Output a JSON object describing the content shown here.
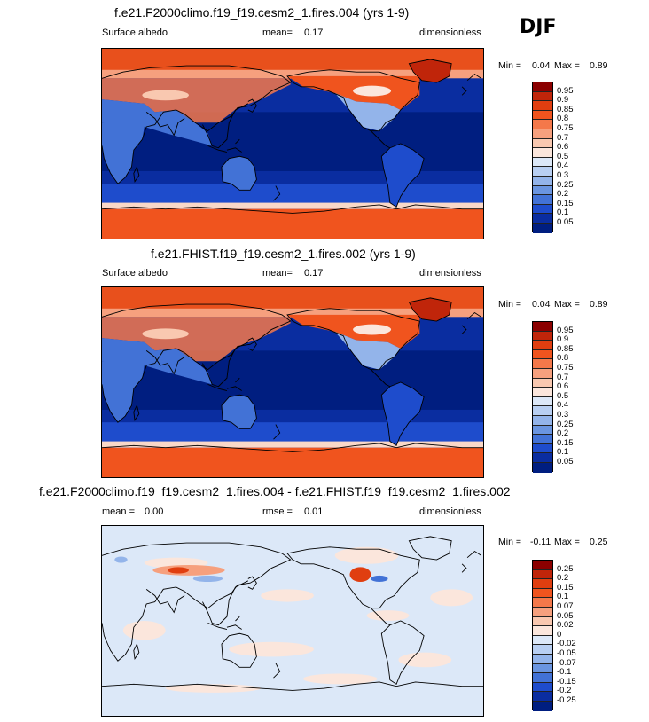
{
  "season": "DJF",
  "panels": [
    {
      "title": "f.e21.F2000climo.f19_f19.cesm2_1.fires.004 (yrs 1-9)",
      "left_label": "Surface albedo",
      "mid_label": "mean=",
      "mid_value": "0.17",
      "right_label": "dimensionless",
      "min_label": "Min =",
      "min_value": "0.04",
      "max_label": "Max =",
      "max_value": "0.89",
      "map_type": "albedo",
      "colorbar": {
        "levels": [
          "0.95",
          "0.9",
          "0.85",
          "0.8",
          "0.75",
          "0.7",
          "0.6",
          "0.5",
          "0.4",
          "0.3",
          "0.25",
          "0.2",
          "0.15",
          "0.1",
          "0.05"
        ],
        "colors": [
          "#8b0000",
          "#c0250a",
          "#e03e10",
          "#f0541e",
          "#f4784a",
          "#f6a07e",
          "#f9c8b0",
          "#fbe6dc",
          "#dce8f8",
          "#b8cff2",
          "#93b4ea",
          "#6a95e0",
          "#4272d6",
          "#1e4ccc",
          "#0a2da0",
          "#001e80"
        ]
      }
    },
    {
      "title": "f.e21.FHIST.f19_f19.cesm2_1.fires.002 (yrs 1-9)",
      "left_label": "Surface albedo",
      "mid_label": "mean=",
      "mid_value": "0.17",
      "right_label": "dimensionless",
      "min_label": "Min =",
      "min_value": "0.04",
      "max_label": "Max =",
      "max_value": "0.89",
      "map_type": "albedo",
      "colorbar": {
        "levels": [
          "0.95",
          "0.9",
          "0.85",
          "0.8",
          "0.75",
          "0.7",
          "0.6",
          "0.5",
          "0.4",
          "0.3",
          "0.25",
          "0.2",
          "0.15",
          "0.1",
          "0.05"
        ],
        "colors": [
          "#8b0000",
          "#c0250a",
          "#e03e10",
          "#f0541e",
          "#f4784a",
          "#f6a07e",
          "#f9c8b0",
          "#fbe6dc",
          "#dce8f8",
          "#b8cff2",
          "#93b4ea",
          "#6a95e0",
          "#4272d6",
          "#1e4ccc",
          "#0a2da0",
          "#001e80"
        ]
      }
    },
    {
      "title": "f.e21.F2000climo.f19_f19.cesm2_1.fires.004 - f.e21.FHIST.f19_f19.cesm2_1.fires.002",
      "left_label": "mean =",
      "left_value": "0.00",
      "mid_label": "rmse =",
      "mid_value": "0.01",
      "right_label": "dimensionless",
      "min_label": "Min =",
      "min_value": "-0.11",
      "max_label": "Max =",
      "max_value": "0.25",
      "map_type": "diff",
      "colorbar": {
        "levels": [
          "0.25",
          "0.2",
          "0.15",
          "0.1",
          "0.07",
          "0.05",
          "0.02",
          "0",
          "-0.02",
          "-0.05",
          "-0.07",
          "-0.1",
          "-0.15",
          "-0.2",
          "-0.25"
        ],
        "colors": [
          "#8b0000",
          "#c0250a",
          "#e03e10",
          "#f0541e",
          "#f4784a",
          "#f6a07e",
          "#f9c8b0",
          "#fbe6dc",
          "#dce8f8",
          "#b8cff2",
          "#93b4ea",
          "#6a95e0",
          "#4272d6",
          "#1e4ccc",
          "#0a2da0",
          "#001e80"
        ]
      }
    }
  ]
}
